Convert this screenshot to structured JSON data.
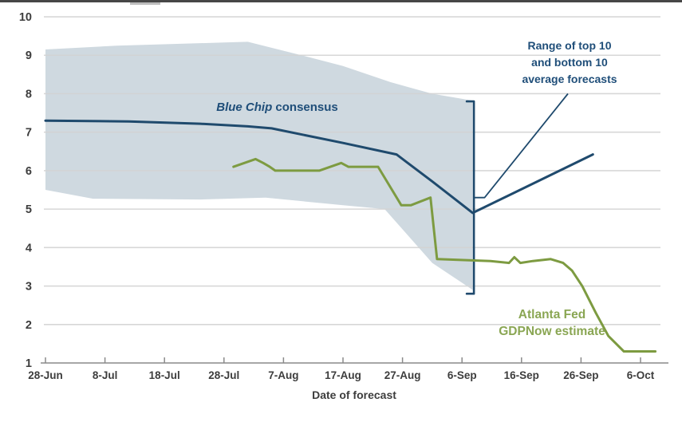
{
  "chart_data": {
    "type": "line",
    "title": "",
    "xlabel": "Date of forecast",
    "ylabel": "",
    "ylim": [
      1,
      10
    ],
    "y_ticks": [
      1,
      2,
      3,
      4,
      5,
      6,
      7,
      8,
      9,
      10
    ],
    "x_ticks": [
      "28-Jun",
      "8-Jul",
      "18-Jul",
      "28-Jul",
      "7-Aug",
      "17-Aug",
      "27-Aug",
      "6-Sep",
      "16-Sep",
      "26-Sep",
      "6-Oct"
    ],
    "x_tick_interval_days": 10,
    "grid": true,
    "legend_position": "inline-annotations",
    "series": [
      {
        "name": "Blue Chip consensus",
        "color": "#1f4a6d",
        "width": 3,
        "points_day_value": [
          [
            0,
            7.3
          ],
          [
            14,
            7.28
          ],
          [
            26,
            7.22
          ],
          [
            34,
            7.15
          ],
          [
            38,
            7.1
          ],
          [
            50,
            6.72
          ],
          [
            59,
            6.42
          ],
          [
            65,
            5.72
          ],
          [
            71.8,
            4.9
          ],
          [
            92,
            6.42
          ]
        ]
      },
      {
        "name": "Atlanta Fed GDPNow estimate",
        "color": "#7d9b41",
        "width": 3,
        "points_day_value": [
          [
            31.6,
            6.1
          ],
          [
            35.3,
            6.3
          ],
          [
            36.6,
            6.2
          ],
          [
            37.7,
            6.1
          ],
          [
            38.6,
            6.0
          ],
          [
            46,
            6.0
          ],
          [
            49.7,
            6.2
          ],
          [
            50.9,
            6.1
          ],
          [
            55.9,
            6.1
          ],
          [
            59.8,
            5.1
          ],
          [
            61.4,
            5.1
          ],
          [
            64.7,
            5.3
          ],
          [
            65.8,
            3.7
          ],
          [
            74.8,
            3.65
          ],
          [
            77.9,
            3.6
          ],
          [
            78.8,
            3.75
          ],
          [
            79.8,
            3.6
          ],
          [
            81.9,
            3.65
          ],
          [
            84.9,
            3.7
          ],
          [
            87,
            3.6
          ],
          [
            88.5,
            3.4
          ],
          [
            90.2,
            3.0
          ],
          [
            92.5,
            2.3
          ],
          [
            94.6,
            1.7
          ],
          [
            97.2,
            1.3
          ],
          [
            102.5,
            1.3
          ]
        ]
      }
    ],
    "band": {
      "name": "Range of top 10 and bottom 10 average forecasts",
      "color": "#cfd9e0",
      "top_day_value": [
        [
          0,
          9.15
        ],
        [
          12,
          9.25
        ],
        [
          30,
          9.33
        ],
        [
          34,
          9.35
        ],
        [
          43,
          9.0
        ],
        [
          50,
          8.72
        ],
        [
          58,
          8.3
        ],
        [
          65,
          8.0
        ],
        [
          71.8,
          7.82
        ]
      ],
      "bottom_day_value": [
        [
          0,
          5.5
        ],
        [
          8,
          5.27
        ],
        [
          26,
          5.25
        ],
        [
          37,
          5.3
        ],
        [
          50,
          5.1
        ],
        [
          57,
          5.0
        ],
        [
          65,
          3.6
        ],
        [
          71.8,
          2.9
        ]
      ]
    },
    "bracket": {
      "day": 72,
      "top_value": 7.8,
      "bottom_value": 2.8,
      "mid_value": 5.3,
      "color": "#1f4a6d"
    },
    "pointer_line_day_value": [
      [
        72.1,
        5.3
      ],
      [
        73.8,
        5.3
      ],
      [
        87.8,
        8.0
      ]
    ],
    "annotations": {
      "blue_chip": {
        "italic_text": "Blue Chip",
        "regular_text": " consensus"
      },
      "range": {
        "line1": "Range of top 10",
        "line2": "and bottom 10",
        "line3": "average forecasts"
      },
      "gdpnow": {
        "line1": "Atlanta Fed",
        "line2": "GDPNow estimate"
      }
    },
    "colors": {
      "grid": "#d3d3d3",
      "axis": "#8a8a8a",
      "tick_label": "#3d3d3d",
      "blue_text": "#1f4e79",
      "green_text": "#8aa653",
      "band_fill": "#cfd9e0"
    }
  }
}
